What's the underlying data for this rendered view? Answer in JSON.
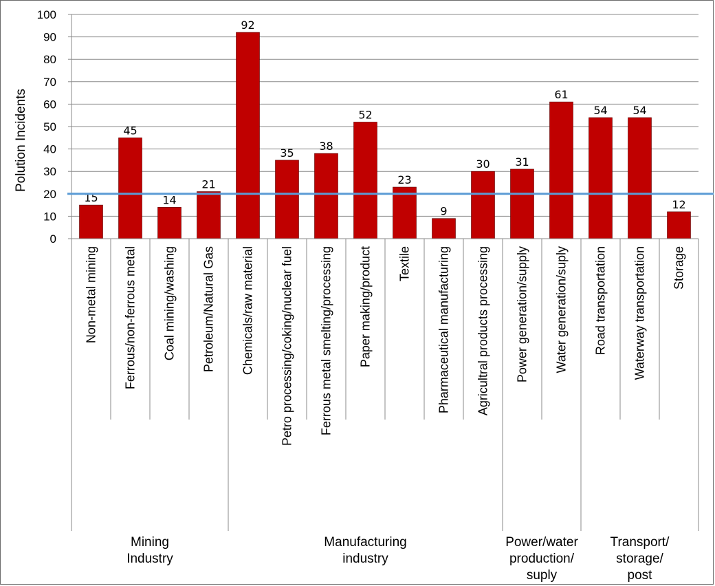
{
  "chart_data": {
    "type": "bar",
    "ylabel": "Polution Incidents",
    "ylim": [
      0,
      100
    ],
    "yticks": [
      0,
      10,
      20,
      30,
      40,
      50,
      60,
      70,
      80,
      90,
      100
    ],
    "grid": true,
    "bar_color": "#c00000",
    "reference_line": {
      "value": 20,
      "color": "#5b9bd5"
    },
    "categories": [
      "Non-metal mining",
      "Ferrous/non-ferrous metal",
      "Coal mining/washing",
      "Petroleum/Natural Gas",
      "Chemicals/raw material",
      "Petro processing/coking/nuclear fuel",
      "Ferrous metal smelting/processing",
      "Paper making/product",
      "Textile",
      "Pharmaceutical manufacturing",
      "Agricultral products processing",
      "Power generation/supply",
      "Water generation/suply",
      "Road transportation",
      "Waterway transportation",
      "Storage"
    ],
    "values": [
      15,
      45,
      14,
      21,
      92,
      35,
      38,
      52,
      23,
      9,
      30,
      31,
      61,
      54,
      54,
      12
    ],
    "groups": [
      {
        "lines": [
          "Mining",
          "Industry"
        ],
        "start": 0,
        "end": 3
      },
      {
        "lines": [
          "Manufacturing",
          "industry"
        ],
        "start": 4,
        "end": 10
      },
      {
        "lines": [
          "Power/water",
          "production/",
          "suply"
        ],
        "start": 11,
        "end": 12
      },
      {
        "lines": [
          "Transport/",
          "storage/",
          "post"
        ],
        "start": 13,
        "end": 15
      }
    ]
  }
}
